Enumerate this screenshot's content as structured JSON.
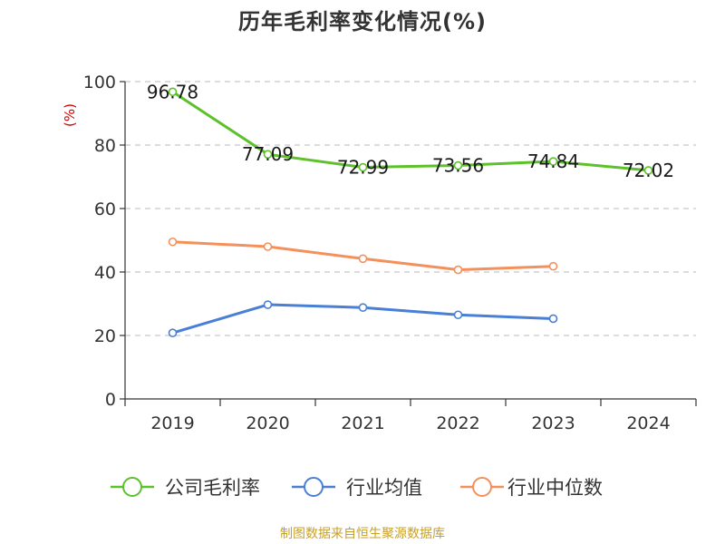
{
  "chart_data": {
    "type": "line",
    "title": "历年毛利率变化情况(%)",
    "ylabel": "(%)",
    "xlabel": "",
    "categories": [
      "2019",
      "2020",
      "2021",
      "2022",
      "2023",
      "2024"
    ],
    "ylim": [
      0,
      100
    ],
    "yticks": [
      0,
      20,
      40,
      60,
      80,
      100
    ],
    "grid": "horizontal dashed",
    "legend_position": "bottom",
    "series": [
      {
        "name": "公司毛利率",
        "color": "#5cc12a",
        "values": [
          96.78,
          77.09,
          72.99,
          73.56,
          74.84,
          72.02
        ],
        "labels": [
          "96.78",
          "77.09",
          "72.99",
          "73.56",
          "74.84",
          "72.02"
        ]
      },
      {
        "name": "行业均值",
        "color": "#4a7fd6",
        "values": [
          20.8,
          29.7,
          28.8,
          26.5,
          25.3,
          null
        ]
      },
      {
        "name": "行业中位数",
        "color": "#f4905c",
        "values": [
          49.5,
          48.0,
          44.2,
          40.7,
          41.8,
          null
        ]
      }
    ]
  },
  "source": "制图数据来自恒生聚源数据库"
}
